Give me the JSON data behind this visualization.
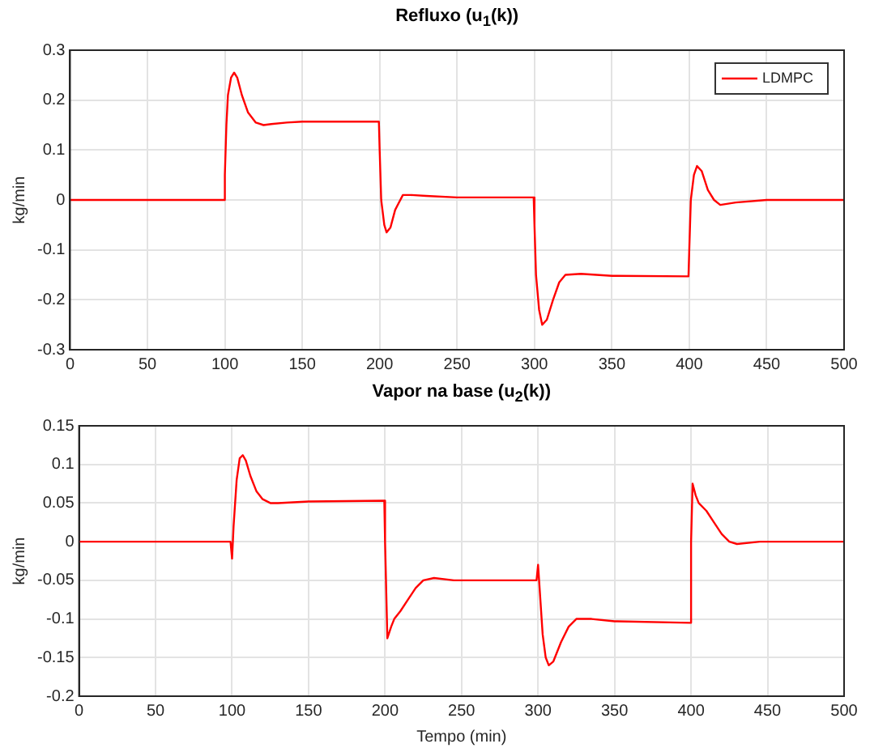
{
  "chart_data": [
    {
      "type": "line",
      "title": "Refluxo (u$_{1}$(k))",
      "ylabel": "kg/min",
      "grid": true,
      "legend": "top right",
      "marker": "none",
      "line_style": "solid",
      "x": [
        0,
        99.5,
        100,
        101,
        102,
        104,
        106,
        108,
        111,
        115,
        120,
        125,
        130,
        140,
        150,
        199.5,
        200,
        201,
        203,
        204.5,
        207,
        210,
        215,
        220,
        230,
        250,
        299.5,
        300,
        301,
        303,
        305,
        308,
        312,
        316,
        320,
        330,
        350,
        399.5,
        400,
        401,
        403,
        405,
        408,
        412,
        416,
        420,
        430,
        450,
        500
      ],
      "xlim": [
        0,
        500
      ],
      "xticks": [
        0,
        50,
        100,
        150,
        200,
        250,
        300,
        350,
        400,
        450,
        500
      ],
      "ylim": [
        -0.3,
        0.3
      ],
      "yticks": [
        -0.3,
        -0.2,
        -0.1,
        0,
        0.1,
        0.2,
        0.3
      ],
      "series": [
        {
          "name": "LDMPC",
          "color": "#ff0000",
          "values": [
            0,
            0,
            0.05,
            0.15,
            0.21,
            0.245,
            0.255,
            0.245,
            0.21,
            0.175,
            0.155,
            0.15,
            0.152,
            0.155,
            0.157,
            0.157,
            0.1,
            0.0,
            -0.05,
            -0.065,
            -0.055,
            -0.02,
            0.01,
            0.01,
            0.008,
            0.005,
            0.005,
            -0.05,
            -0.15,
            -0.22,
            -0.25,
            -0.24,
            -0.2,
            -0.165,
            -0.15,
            -0.148,
            -0.152,
            -0.153,
            -0.1,
            0.0,
            0.05,
            0.068,
            0.058,
            0.02,
            0,
            -0.01,
            -0.005,
            0,
            0
          ]
        }
      ]
    },
    {
      "type": "line",
      "title": "Vapor na base (u$_{2}$(k))",
      "xlabel": "Tempo (min)",
      "ylabel": "kg/min",
      "grid": true,
      "marker": "none",
      "line_style": "solid",
      "x": [
        0,
        99,
        100,
        101,
        103,
        105,
        107,
        109,
        112,
        116,
        120,
        125,
        130,
        150,
        199.5,
        200,
        201.5,
        204,
        206,
        210,
        215,
        220,
        225,
        232,
        245,
        299,
        300,
        301,
        303,
        305,
        307,
        310,
        315,
        320,
        325,
        335,
        350,
        399.5,
        400,
        401,
        403,
        405,
        410,
        415,
        420,
        425,
        430,
        445,
        500
      ],
      "xlim": [
        0,
        500
      ],
      "xticks": [
        0,
        50,
        100,
        150,
        200,
        250,
        300,
        350,
        400,
        450,
        500
      ],
      "ylim": [
        -0.2,
        0.15
      ],
      "yticks": [
        -0.2,
        -0.15,
        -0.1,
        -0.05,
        0,
        0.05,
        0.1,
        0.15
      ],
      "series": [
        {
          "color": "#ff0000",
          "values": [
            0,
            0,
            -0.022,
            0.02,
            0.08,
            0.108,
            0.112,
            0.105,
            0.085,
            0.065,
            0.055,
            0.05,
            0.05,
            0.052,
            0.053,
            0.0,
            -0.125,
            -0.11,
            -0.1,
            -0.09,
            -0.075,
            -0.06,
            -0.05,
            -0.047,
            -0.05,
            -0.05,
            -0.03,
            -0.06,
            -0.12,
            -0.15,
            -0.16,
            -0.155,
            -0.13,
            -0.11,
            -0.1,
            -0.1,
            -0.103,
            -0.105,
            0.0,
            0.075,
            0.06,
            0.05,
            0.04,
            0.025,
            0.01,
            0.0,
            -0.003,
            0,
            0
          ]
        }
      ]
    }
  ]
}
